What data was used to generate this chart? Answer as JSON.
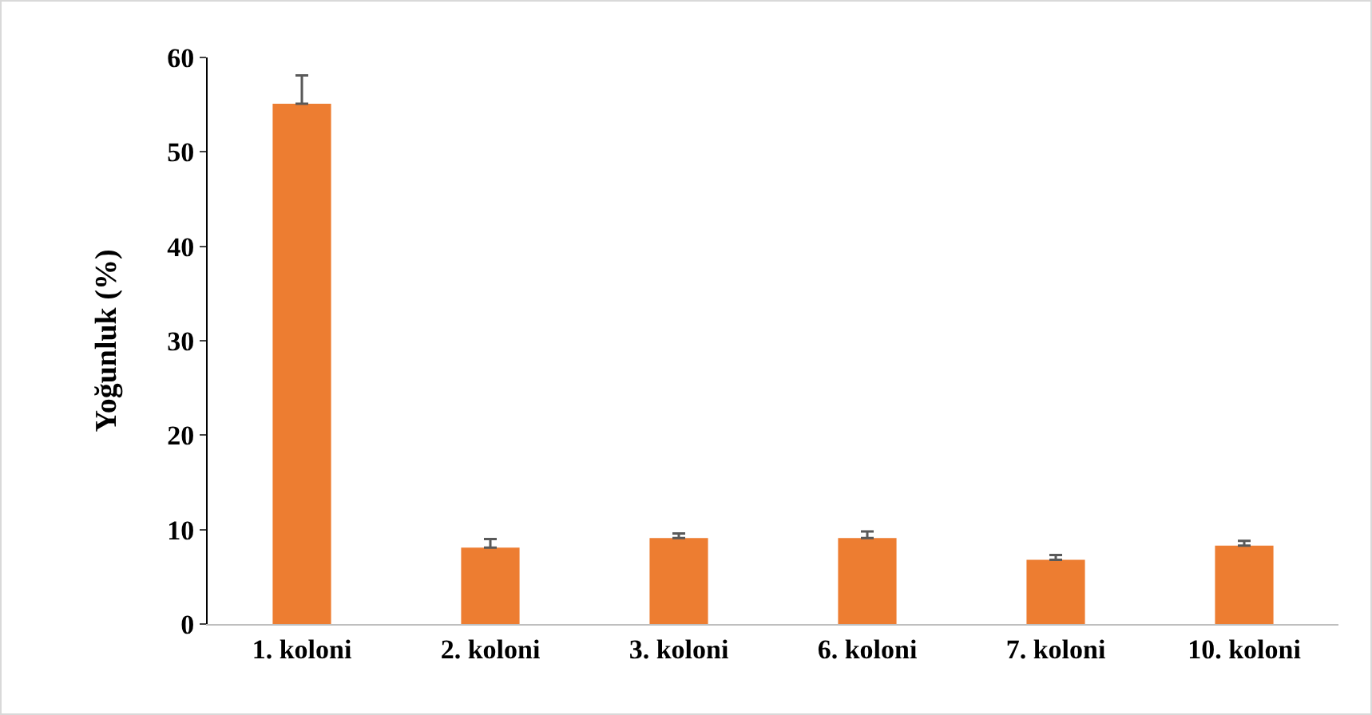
{
  "chart_data": {
    "type": "bar",
    "ylabel": "Yoğunluk (%)",
    "categories": [
      "1. koloni",
      "2. koloni",
      "3. koloni",
      "6. koloni",
      "7. koloni",
      "10. koloni"
    ],
    "values": [
      55.1,
      8.1,
      9.1,
      9.1,
      6.8,
      8.3
    ],
    "errors": [
      [
        55.1,
        58.1
      ],
      [
        8.1,
        9.0
      ],
      [
        9.1,
        9.6
      ],
      [
        9.1,
        9.8
      ],
      [
        6.8,
        7.3
      ],
      [
        8.3,
        8.8
      ]
    ],
    "color": "#ed7d31",
    "ylim": [
      0,
      60
    ],
    "yticks": [
      0,
      10,
      20,
      30,
      40,
      50,
      60
    ],
    "grid": false
  }
}
